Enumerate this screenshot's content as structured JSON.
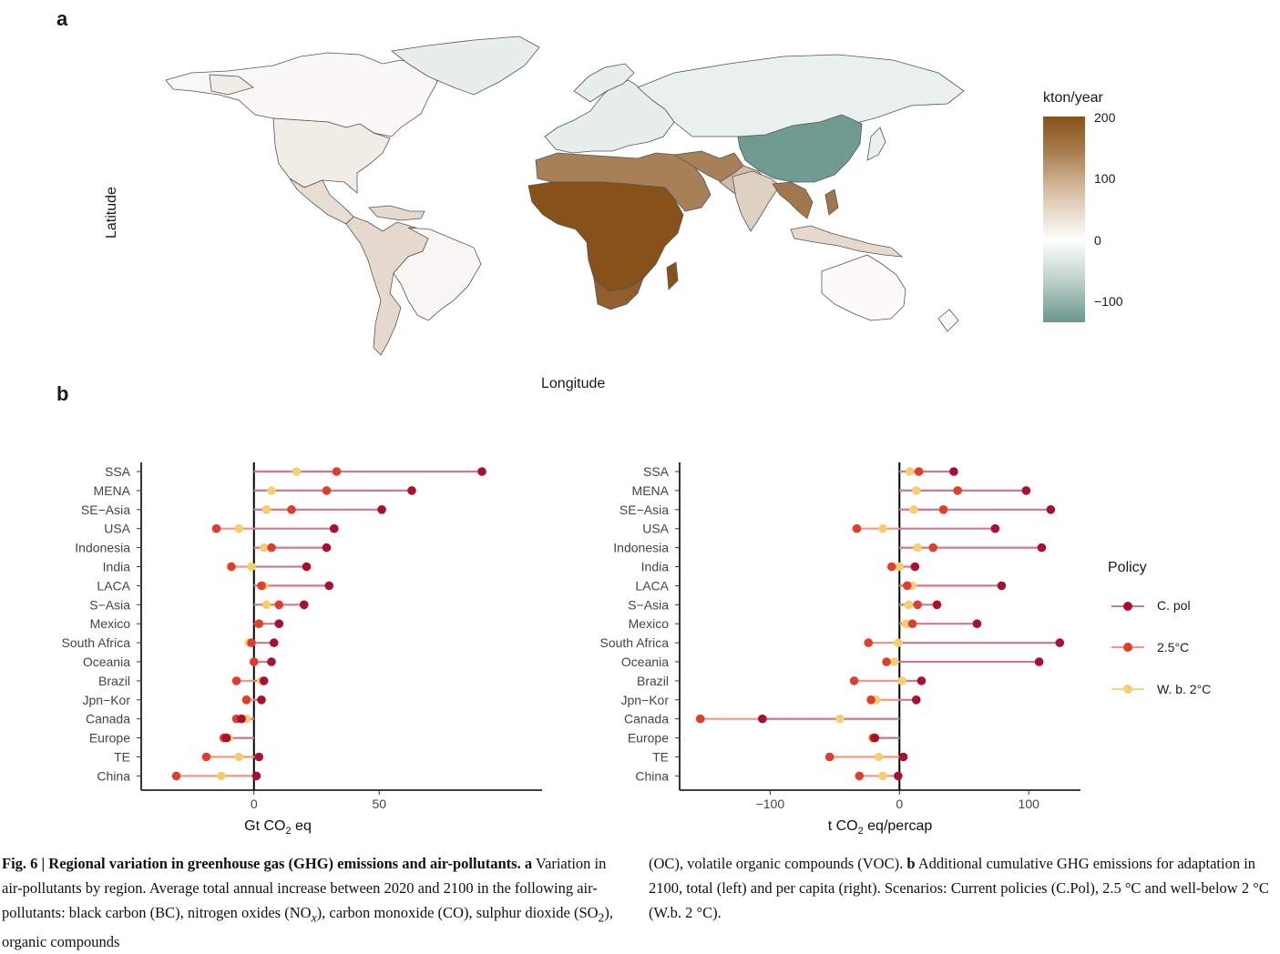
{
  "panel_a": {
    "letter": "a",
    "xlabel": "Longitude",
    "ylabel": "Latitude",
    "legend": {
      "title": "kton/year",
      "ticks": [
        "200",
        "100",
        "0",
        "−100"
      ],
      "range": [
        -135,
        205
      ],
      "colors": {
        "low": "#6b978c",
        "mid": "#ffffff",
        "high": "#87521a"
      }
    },
    "regions": [
      {
        "name": "SSA",
        "value": 205
      },
      {
        "name": "MENA",
        "value": 150
      },
      {
        "name": "SE-Asia",
        "value": 160
      },
      {
        "name": "India",
        "value": 55
      },
      {
        "name": "S-Asia",
        "value": 80
      },
      {
        "name": "LACA",
        "value": 45
      },
      {
        "name": "Brazil",
        "value": 10
      },
      {
        "name": "USA",
        "value": 22
      },
      {
        "name": "Canada",
        "value": 8
      },
      {
        "name": "Mexico",
        "value": 40
      },
      {
        "name": "Europe",
        "value": -22
      },
      {
        "name": "TE",
        "value": -20
      },
      {
        "name": "China",
        "value": -130
      },
      {
        "name": "Jpn-Kor",
        "value": -18
      },
      {
        "name": "Indonesia",
        "value": 45
      },
      {
        "name": "Oceania",
        "value": 5
      },
      {
        "name": "South Africa",
        "value": 190
      }
    ]
  },
  "panel_b": {
    "letter": "b"
  },
  "chart_data": [
    {
      "type": "lollipop",
      "xlabel_main": "Gt CO",
      "xlabel_sub": "2",
      "xlabel_tail": " eq",
      "xlim": [
        -45,
        115
      ],
      "xticks": [
        0,
        50
      ],
      "categories": [
        "SSA",
        "MENA",
        "SE−Asia",
        "USA",
        "Indonesia",
        "India",
        "LACA",
        "S−Asia",
        "Mexico",
        "South Africa",
        "Oceania",
        "Brazil",
        "Jpn−Kor",
        "Canada",
        "Europe",
        "TE",
        "China"
      ],
      "series": [
        {
          "name": "C. pol",
          "values": [
            91,
            63,
            51,
            32,
            29,
            21,
            30,
            20,
            10,
            8,
            7,
            4,
            3,
            -5,
            -11,
            2,
            1
          ]
        },
        {
          "name": "2.5°C",
          "values": [
            33,
            29,
            15,
            -15,
            7,
            -9,
            3,
            10,
            2,
            -1,
            0,
            -7,
            -3,
            -7,
            -12,
            -19,
            -31
          ]
        },
        {
          "name": "W. b. 2°C",
          "values": [
            17,
            7,
            5,
            -6,
            4,
            -1,
            4,
            5,
            2,
            -2,
            0,
            3,
            -3,
            -3,
            -10,
            -6,
            -13
          ]
        }
      ]
    },
    {
      "type": "lollipop",
      "xlabel_main": "t CO",
      "xlabel_sub": "2",
      "xlabel_tail": " eq/percap",
      "xlim": [
        -170,
        140
      ],
      "xticks": [
        -100,
        0,
        100
      ],
      "categories": [
        "SSA",
        "MENA",
        "SE−Asia",
        "USA",
        "Indonesia",
        "India",
        "LACA",
        "S−Asia",
        "Mexico",
        "South Africa",
        "Oceania",
        "Brazil",
        "Jpn−Kor",
        "Canada",
        "Europe",
        "TE",
        "China"
      ],
      "series": [
        {
          "name": "C. pol",
          "values": [
            42,
            98,
            117,
            74,
            110,
            12,
            79,
            29,
            60,
            124,
            108,
            17,
            13,
            -106,
            -19,
            3,
            -1
          ]
        },
        {
          "name": "2.5°C",
          "values": [
            15,
            45,
            34,
            -33,
            26,
            -6,
            6,
            14,
            10,
            -24,
            -10,
            -35,
            -22,
            -154,
            -20,
            -54,
            -31
          ]
        },
        {
          "name": "W. b. 2°C",
          "values": [
            8,
            13,
            11,
            -13,
            14,
            0,
            10,
            7,
            5,
            -1,
            -4,
            2,
            -18,
            -46,
            -21,
            -16,
            -13
          ]
        }
      ]
    }
  ],
  "policy_legend": {
    "title": "Policy",
    "items": [
      {
        "label": "C. pol",
        "line": "#c97d92",
        "dot": "#a8102e"
      },
      {
        "label": "2.5°C",
        "line": "#ef9a86",
        "dot": "#e03e2a"
      },
      {
        "label": "W. b. 2°C",
        "line": "#f9d77f",
        "dot": "#f5cf6e"
      }
    ]
  },
  "caption": {
    "fig_label": "Fig. 6 | Regional variation in greenhouse gas (GHG) emissions and air-pollutants.",
    "a_label": "a",
    "a_text_1": " Variation in air-pollutants by region. Average total annual increase between 2020 and 2100 in the following air-pollutants: black carbon (BC), nitrogen oxides (NO",
    "nox_sub": "x",
    "a_text_2": "), carbon monoxide (CO), sulphur dioxide (SO",
    "so2_sub": "2",
    "a_text_3": "), organic compounds (OC), volatile organic compounds (VOC).",
    "b_label": "b",
    "b_text": " Additional cumulative GHG emissions for adaptation in 2100, total (left) and per capita (right). Scenarios: Current policies (C.Pol), 2.5 °C and well-below 2 °C (W.b. 2 °C)."
  }
}
